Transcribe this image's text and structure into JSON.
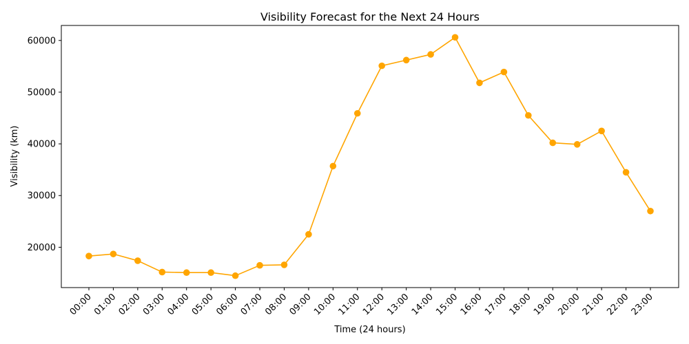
{
  "chart_data": {
    "type": "line",
    "title": "Visibility Forecast for the Next 24 Hours",
    "xlabel": "Time (24 hours)",
    "ylabel": "Visibility (km)",
    "categories": [
      "00:00",
      "01:00",
      "02:00",
      "03:00",
      "04:00",
      "05:00",
      "06:00",
      "07:00",
      "08:00",
      "09:00",
      "10:00",
      "11:00",
      "12:00",
      "13:00",
      "14:00",
      "15:00",
      "16:00",
      "17:00",
      "18:00",
      "19:00",
      "20:00",
      "21:00",
      "22:00",
      "23:00"
    ],
    "series": [
      {
        "values": [
          18300,
          18700,
          17400,
          15200,
          15100,
          15100,
          14500,
          16500,
          16600,
          22500,
          35700,
          45900,
          55100,
          56200,
          57300,
          60600,
          51800,
          53900,
          45500,
          40200,
          39900,
          42500,
          34500,
          27000
        ],
        "color": "#FFA500",
        "marker": "circle"
      }
    ],
    "ylim": [
      12200,
      62900
    ],
    "yticks": [
      20000,
      30000,
      40000,
      50000,
      60000
    ],
    "x_tick_rotation_deg": 45,
    "grid": false,
    "legend": "none"
  }
}
